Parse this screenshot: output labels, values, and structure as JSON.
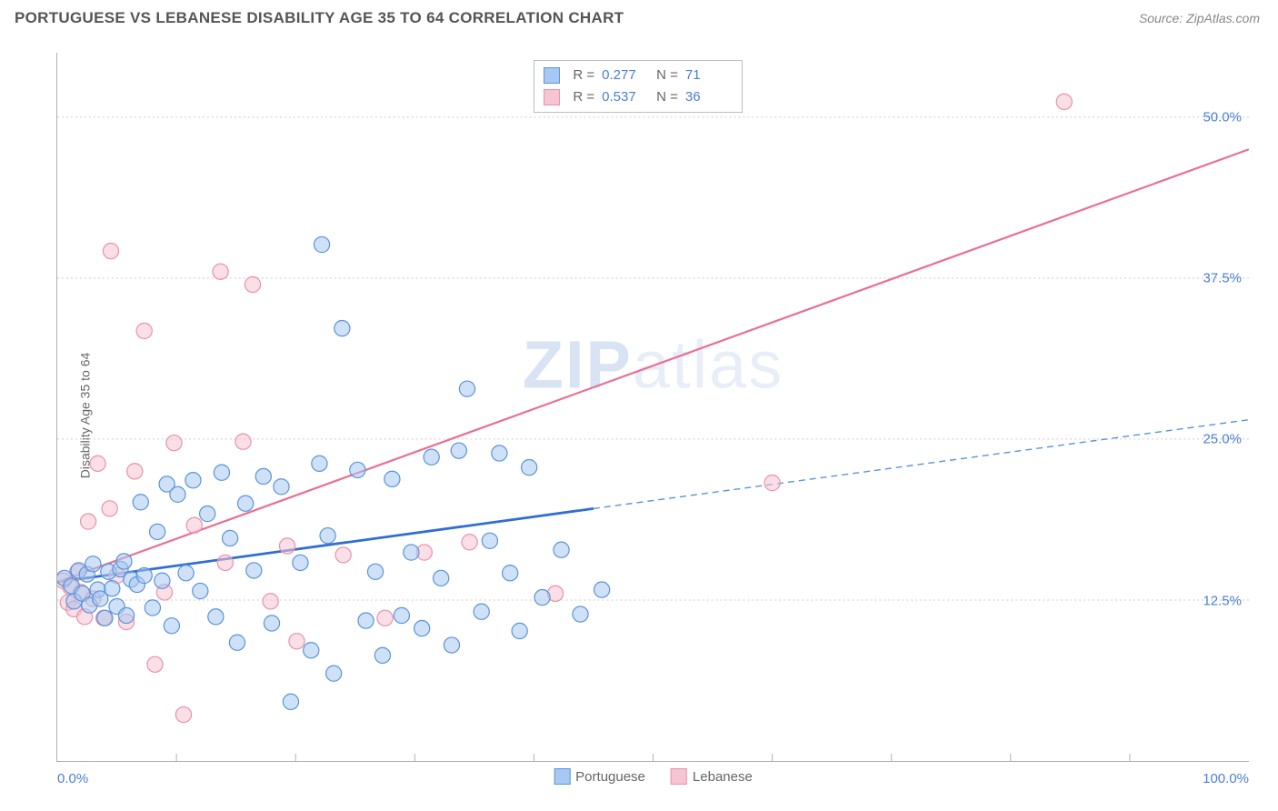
{
  "title": "PORTUGUESE VS LEBANESE DISABILITY AGE 35 TO 64 CORRELATION CHART",
  "source": "Source: ZipAtlas.com",
  "watermark_a": "ZIP",
  "watermark_b": "atlas",
  "ylabel": "Disability Age 35 to 64",
  "chart": {
    "type": "scatter",
    "background_color": "#ffffff",
    "grid_color": "#cccccc",
    "xlim": [
      0,
      100
    ],
    "ylim": [
      0,
      55
    ],
    "y_ticks": [
      {
        "v": 12.5,
        "label": "12.5%"
      },
      {
        "v": 25.0,
        "label": "25.0%"
      },
      {
        "v": 37.5,
        "label": "37.5%"
      },
      {
        "v": 50.0,
        "label": "50.0%"
      }
    ],
    "x_tick_step": 10,
    "x_start_label": "0.0%",
    "x_end_label": "100.0%",
    "series": {
      "portuguese": {
        "label": "Portuguese",
        "fill_color": "#a7c8f0",
        "stroke_color": "#5a94db",
        "r_value": "0.277",
        "n_value": "71",
        "trend": {
          "x0": 0,
          "y0": 13.9,
          "x1": 45,
          "y1": 19.6,
          "xe": 100,
          "ye": 26.5,
          "solid_color": "#2f6fd1",
          "dash_color": "#5a94db"
        },
        "points": [
          {
            "x": 0.6,
            "y": 14.2
          },
          {
            "x": 1.2,
            "y": 13.6
          },
          {
            "x": 1.4,
            "y": 12.4
          },
          {
            "x": 1.8,
            "y": 14.8
          },
          {
            "x": 2.1,
            "y": 13.0
          },
          {
            "x": 2.5,
            "y": 14.5
          },
          {
            "x": 2.7,
            "y": 12.1
          },
          {
            "x": 3.0,
            "y": 15.3
          },
          {
            "x": 3.4,
            "y": 13.3
          },
          {
            "x": 3.6,
            "y": 12.6
          },
          {
            "x": 4.0,
            "y": 11.1
          },
          {
            "x": 4.3,
            "y": 14.7
          },
          {
            "x": 4.6,
            "y": 13.4
          },
          {
            "x": 5.0,
            "y": 12.0
          },
          {
            "x": 5.3,
            "y": 14.9
          },
          {
            "x": 5.6,
            "y": 15.5
          },
          {
            "x": 5.8,
            "y": 11.3
          },
          {
            "x": 6.2,
            "y": 14.1
          },
          {
            "x": 6.7,
            "y": 13.7
          },
          {
            "x": 7.0,
            "y": 20.1
          },
          {
            "x": 7.3,
            "y": 14.4
          },
          {
            "x": 8.0,
            "y": 11.9
          },
          {
            "x": 8.4,
            "y": 17.8
          },
          {
            "x": 8.8,
            "y": 14.0
          },
          {
            "x": 9.2,
            "y": 21.5
          },
          {
            "x": 9.6,
            "y": 10.5
          },
          {
            "x": 10.1,
            "y": 20.7
          },
          {
            "x": 10.8,
            "y": 14.6
          },
          {
            "x": 11.4,
            "y": 21.8
          },
          {
            "x": 12.0,
            "y": 13.2
          },
          {
            "x": 12.6,
            "y": 19.2
          },
          {
            "x": 13.3,
            "y": 11.2
          },
          {
            "x": 13.8,
            "y": 22.4
          },
          {
            "x": 14.5,
            "y": 17.3
          },
          {
            "x": 15.1,
            "y": 9.2
          },
          {
            "x": 15.8,
            "y": 20.0
          },
          {
            "x": 16.5,
            "y": 14.8
          },
          {
            "x": 17.3,
            "y": 22.1
          },
          {
            "x": 18.0,
            "y": 10.7
          },
          {
            "x": 18.8,
            "y": 21.3
          },
          {
            "x": 19.6,
            "y": 4.6
          },
          {
            "x": 20.4,
            "y": 15.4
          },
          {
            "x": 21.3,
            "y": 8.6
          },
          {
            "x": 22.0,
            "y": 23.1
          },
          {
            "x": 22.7,
            "y": 17.5
          },
          {
            "x": 22.2,
            "y": 40.1
          },
          {
            "x": 23.2,
            "y": 6.8
          },
          {
            "x": 23.9,
            "y": 33.6
          },
          {
            "x": 25.2,
            "y": 22.6
          },
          {
            "x": 25.9,
            "y": 10.9
          },
          {
            "x": 26.7,
            "y": 14.7
          },
          {
            "x": 27.3,
            "y": 8.2
          },
          {
            "x": 28.1,
            "y": 21.9
          },
          {
            "x": 28.9,
            "y": 11.3
          },
          {
            "x": 29.7,
            "y": 16.2
          },
          {
            "x": 30.6,
            "y": 10.3
          },
          {
            "x": 31.4,
            "y": 23.6
          },
          {
            "x": 32.2,
            "y": 14.2
          },
          {
            "x": 33.1,
            "y": 9.0
          },
          {
            "x": 33.7,
            "y": 24.1
          },
          {
            "x": 34.4,
            "y": 28.9
          },
          {
            "x": 35.6,
            "y": 11.6
          },
          {
            "x": 36.3,
            "y": 17.1
          },
          {
            "x": 37.1,
            "y": 23.9
          },
          {
            "x": 38.0,
            "y": 14.6
          },
          {
            "x": 38.8,
            "y": 10.1
          },
          {
            "x": 39.6,
            "y": 22.8
          },
          {
            "x": 40.7,
            "y": 12.7
          },
          {
            "x": 42.3,
            "y": 16.4
          },
          {
            "x": 43.9,
            "y": 11.4
          },
          {
            "x": 45.7,
            "y": 13.3
          }
        ]
      },
      "lebanese": {
        "label": "Lebanese",
        "fill_color": "#f6c5d3",
        "stroke_color": "#ea91ab",
        "r_value": "0.537",
        "n_value": "36",
        "trend": {
          "x0": 0,
          "y0": 13.9,
          "x1": 100,
          "y1": 47.5,
          "color": "#ea6f93"
        },
        "points": [
          {
            "x": 0.5,
            "y": 14.0
          },
          {
            "x": 0.9,
            "y": 12.3
          },
          {
            "x": 1.1,
            "y": 13.5
          },
          {
            "x": 1.4,
            "y": 11.8
          },
          {
            "x": 1.7,
            "y": 14.7
          },
          {
            "x": 2.0,
            "y": 13.1
          },
          {
            "x": 2.3,
            "y": 11.2
          },
          {
            "x": 2.6,
            "y": 18.6
          },
          {
            "x": 3.0,
            "y": 12.6
          },
          {
            "x": 3.4,
            "y": 23.1
          },
          {
            "x": 3.9,
            "y": 11.1
          },
          {
            "x": 4.4,
            "y": 19.6
          },
          {
            "x": 5.0,
            "y": 14.4
          },
          {
            "x": 5.8,
            "y": 10.8
          },
          {
            "x": 6.5,
            "y": 22.5
          },
          {
            "x": 4.5,
            "y": 39.6
          },
          {
            "x": 7.3,
            "y": 33.4
          },
          {
            "x": 8.2,
            "y": 7.5
          },
          {
            "x": 9.0,
            "y": 13.1
          },
          {
            "x": 9.8,
            "y": 24.7
          },
          {
            "x": 10.6,
            "y": 3.6
          },
          {
            "x": 11.5,
            "y": 18.3
          },
          {
            "x": 13.7,
            "y": 38.0
          },
          {
            "x": 14.1,
            "y": 15.4
          },
          {
            "x": 15.6,
            "y": 24.8
          },
          {
            "x": 16.4,
            "y": 37.0
          },
          {
            "x": 17.9,
            "y": 12.4
          },
          {
            "x": 19.3,
            "y": 16.7
          },
          {
            "x": 20.1,
            "y": 9.3
          },
          {
            "x": 24.0,
            "y": 16.0
          },
          {
            "x": 27.5,
            "y": 11.1
          },
          {
            "x": 30.8,
            "y": 16.2
          },
          {
            "x": 34.6,
            "y": 17.0
          },
          {
            "x": 41.8,
            "y": 13.0
          },
          {
            "x": 60.0,
            "y": 21.6
          },
          {
            "x": 84.5,
            "y": 51.2
          }
        ]
      }
    },
    "legend": {
      "r_label": "R =",
      "n_label": "N ="
    },
    "marker_radius": 8.6,
    "label_fontsize": 15,
    "title_fontsize": 17,
    "tick_color": "#4a7fd8"
  }
}
